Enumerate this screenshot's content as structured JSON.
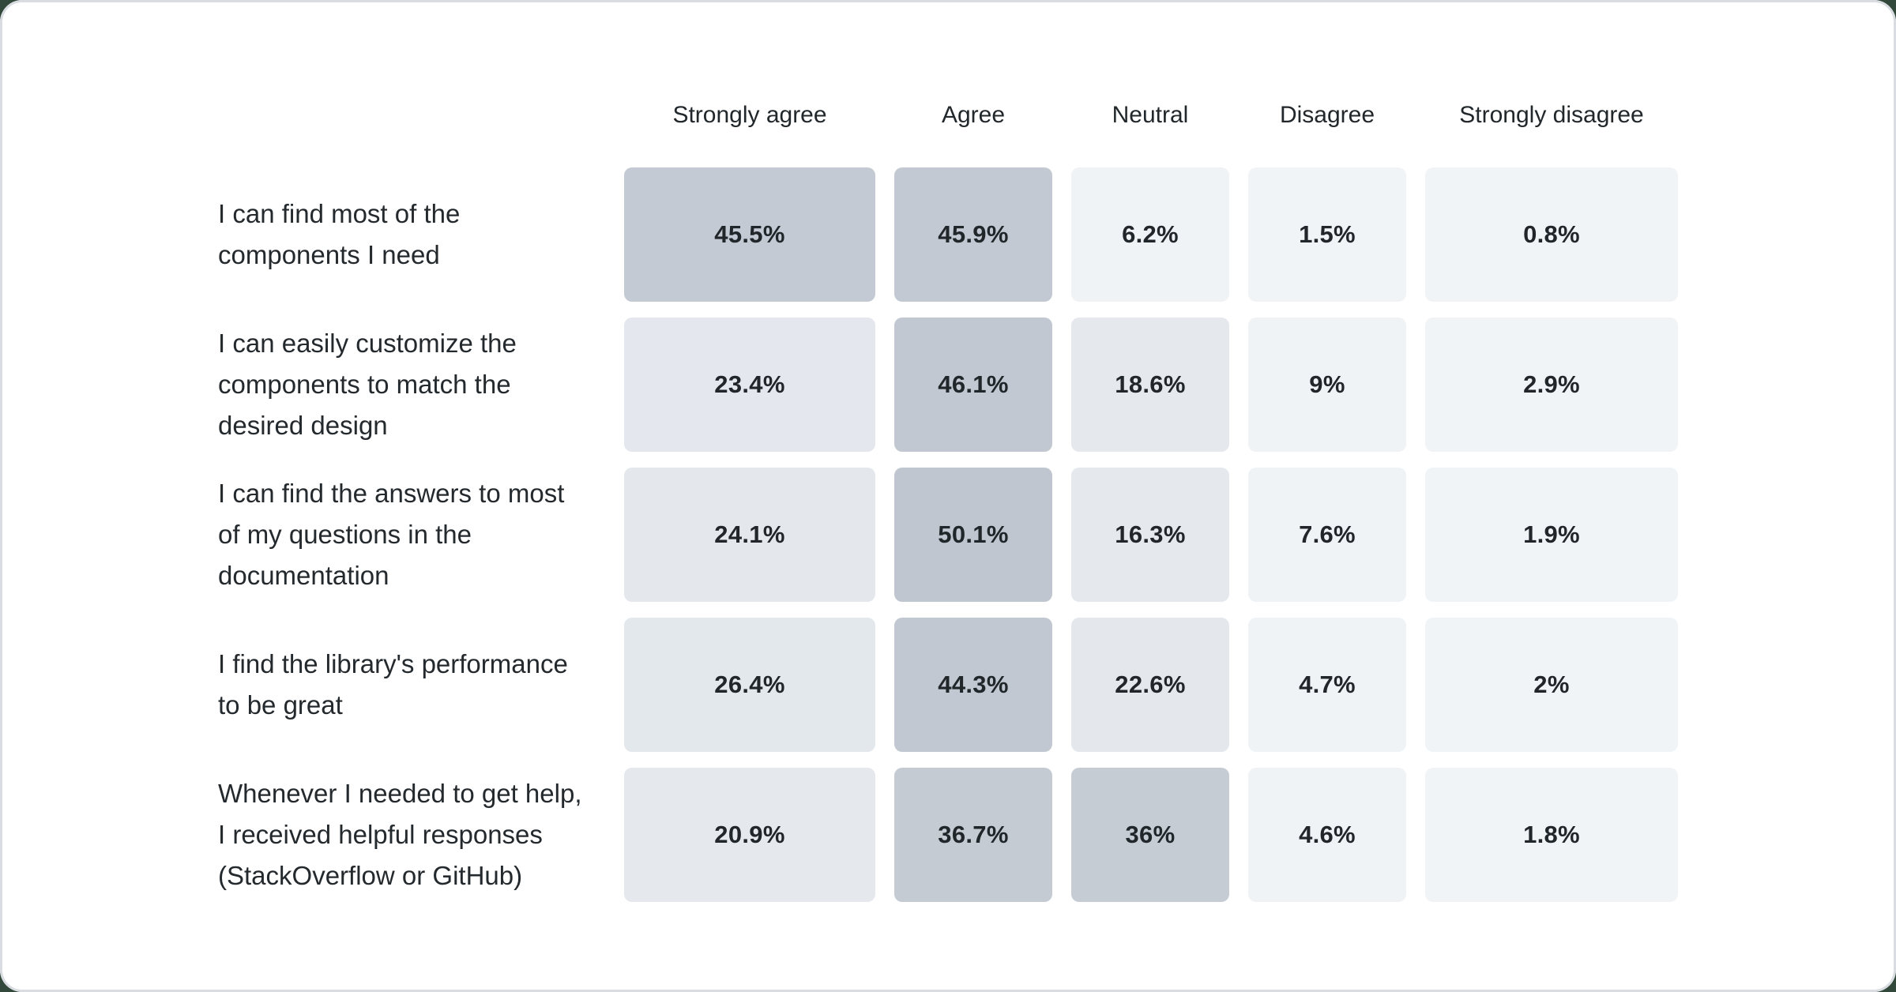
{
  "chart_data": {
    "type": "heatmap",
    "columns": [
      "Strongly agree",
      "Agree",
      "Neutral",
      "Disagree",
      "Strongly disagree"
    ],
    "rows": [
      {
        "label": "I can find most of the\ncomponents I need",
        "values": [
          45.5,
          45.9,
          6.2,
          1.5,
          0.8
        ],
        "display": [
          "45.5%",
          "45.9%",
          "6.2%",
          "1.5%",
          "0.8%"
        ],
        "colors": [
          "#c3cad3",
          "#c2c9d2",
          "#eff3f6",
          "#f1f4f7",
          "#f1f4f7"
        ]
      },
      {
        "label": "I can easily customize the\ncomponents to match the\ndesired design",
        "values": [
          23.4,
          46.1,
          18.6,
          9,
          2.9
        ],
        "display": [
          "23.4%",
          "46.1%",
          "18.6%",
          "9%",
          "2.9%"
        ],
        "colors": [
          "#e4e8ee",
          "#c1c8d1",
          "#e5e9ee",
          "#eff3f6",
          "#f1f4f7"
        ]
      },
      {
        "label": "I can find the answers to most\nof my questions in the\ndocumentation",
        "values": [
          24.1,
          50.1,
          16.3,
          7.6,
          1.9
        ],
        "display": [
          "24.1%",
          "50.1%",
          "16.3%",
          "7.6%",
          "1.9%"
        ],
        "colors": [
          "#e4e8ed",
          "#bfc6d0",
          "#e5e9ee",
          "#eff3f6",
          "#f1f4f7"
        ]
      },
      {
        "label": "I find the library's performance\nto be great",
        "values": [
          26.4,
          44.3,
          22.6,
          4.7,
          2
        ],
        "display": [
          "26.4%",
          "44.3%",
          "22.6%",
          "4.7%",
          "2%"
        ],
        "colors": [
          "#e3e8ed",
          "#c1c8d1",
          "#e4e8ed",
          "#f0f3f6",
          "#f1f4f7"
        ]
      },
      {
        "label": "Whenever I needed to get help,\nI received helpful responses\n(StackOverflow or GitHub)",
        "values": [
          20.9,
          36.7,
          36,
          4.6,
          1.8
        ],
        "display": [
          "20.9%",
          "36.7%",
          "36%",
          "4.6%",
          "1.8%"
        ],
        "colors": [
          "#e5e9ee",
          "#c4cbd3",
          "#c5ccd4",
          "#f0f3f6",
          "#f1f4f7"
        ]
      }
    ],
    "layout": {
      "legend": false,
      "grid": false,
      "value_labels": "inside-cells"
    },
    "palette": {
      "scale_min_color": "#f1f4f7",
      "scale_max_color": "#bfc6d0",
      "card_background": "#ffffff",
      "card_border": "#d9dde1",
      "page_background": "#31483a",
      "header_text": "#21272a",
      "label_text": "#24292d",
      "value_text": "#21262a"
    }
  }
}
